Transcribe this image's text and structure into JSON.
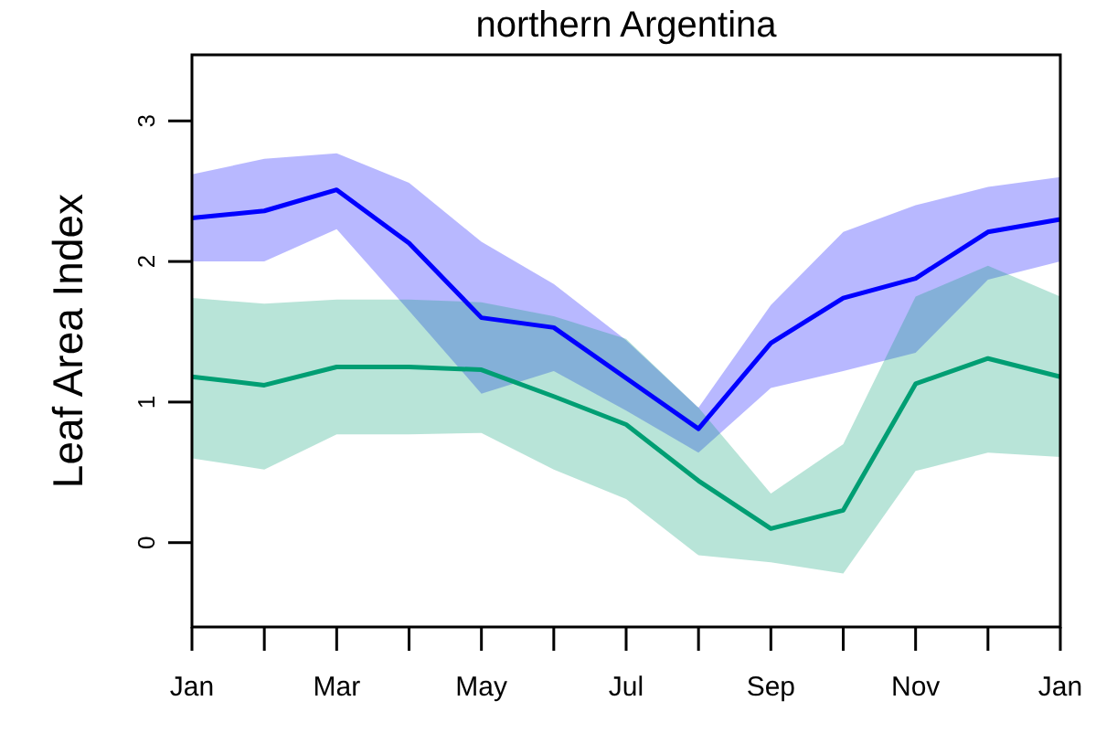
{
  "chart_data": {
    "type": "line",
    "title": "northern Argentina",
    "ylabel": "Leaf Area Index",
    "categories": [
      "Jan",
      null,
      "Mar",
      null,
      "May",
      null,
      "Jul",
      null,
      "Sep",
      null,
      "Nov",
      null,
      "Jan"
    ],
    "ylim": [
      -0.6,
      3.47
    ],
    "yticks": [
      0,
      1,
      2,
      3
    ],
    "grid": false,
    "series": [
      {
        "color": "#0000ff",
        "values": [
          2.31,
          2.36,
          2.51,
          2.13,
          1.6,
          1.53,
          1.17,
          0.81,
          1.42,
          1.74,
          1.88,
          2.21,
          2.3
        ],
        "lower": [
          2.0,
          2.0,
          2.23,
          1.65,
          1.06,
          1.22,
          0.94,
          0.64,
          1.1,
          1.22,
          1.35,
          1.87,
          2.0
        ],
        "upper": [
          2.62,
          2.73,
          2.77,
          2.56,
          2.14,
          1.84,
          1.44,
          0.96,
          1.69,
          2.21,
          2.4,
          2.53,
          2.6
        ]
      },
      {
        "color": "#009e73",
        "values": [
          1.18,
          1.12,
          1.25,
          1.25,
          1.23,
          1.04,
          0.84,
          0.44,
          0.1,
          0.23,
          1.13,
          1.31,
          1.18
        ],
        "lower": [
          0.6,
          0.52,
          0.77,
          0.77,
          0.78,
          0.52,
          0.31,
          -0.09,
          -0.14,
          -0.22,
          0.51,
          0.64,
          0.61
        ],
        "upper": [
          1.74,
          1.7,
          1.73,
          1.73,
          1.71,
          1.61,
          1.45,
          0.96,
          0.35,
          0.7,
          1.75,
          1.97,
          1.75
        ]
      }
    ]
  }
}
